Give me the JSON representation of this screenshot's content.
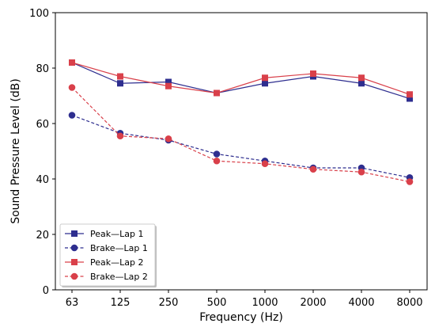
{
  "chart_data": {
    "type": "line",
    "title": "",
    "xlabel": "Frequency (Hz)",
    "ylabel": "Sound Pressure Level (dB)",
    "categories": [
      "63",
      "125",
      "250",
      "500",
      "1000",
      "2000",
      "4000",
      "8000"
    ],
    "ylim": [
      0,
      100
    ],
    "yticks": [
      "0",
      "20",
      "40",
      "60",
      "80",
      "100"
    ],
    "grid": false,
    "legend_position": "lower-left",
    "series": [
      {
        "name": "Peak—Lap 1",
        "values": [
          82,
          74.5,
          75,
          71,
          74.5,
          77,
          74.5,
          69
        ],
        "color": "#2e2e8f",
        "marker": "square",
        "linestyle": "solid"
      },
      {
        "name": "Brake—Lap 1",
        "values": [
          63,
          56.5,
          54,
          49,
          46.5,
          44,
          44,
          40.5
        ],
        "color": "#2e2e8f",
        "marker": "circle",
        "linestyle": "dashed"
      },
      {
        "name": "Peak—Lap 2",
        "values": [
          82,
          77,
          73.5,
          71,
          76.5,
          78,
          76.5,
          70.5
        ],
        "color": "#d9404a",
        "marker": "square",
        "linestyle": "solid"
      },
      {
        "name": "Brake—Lap 2",
        "values": [
          73,
          55.5,
          54.5,
          46.5,
          45.5,
          43.5,
          42.5,
          39
        ],
        "color": "#d9404a",
        "marker": "circle",
        "linestyle": "dashed"
      }
    ]
  }
}
